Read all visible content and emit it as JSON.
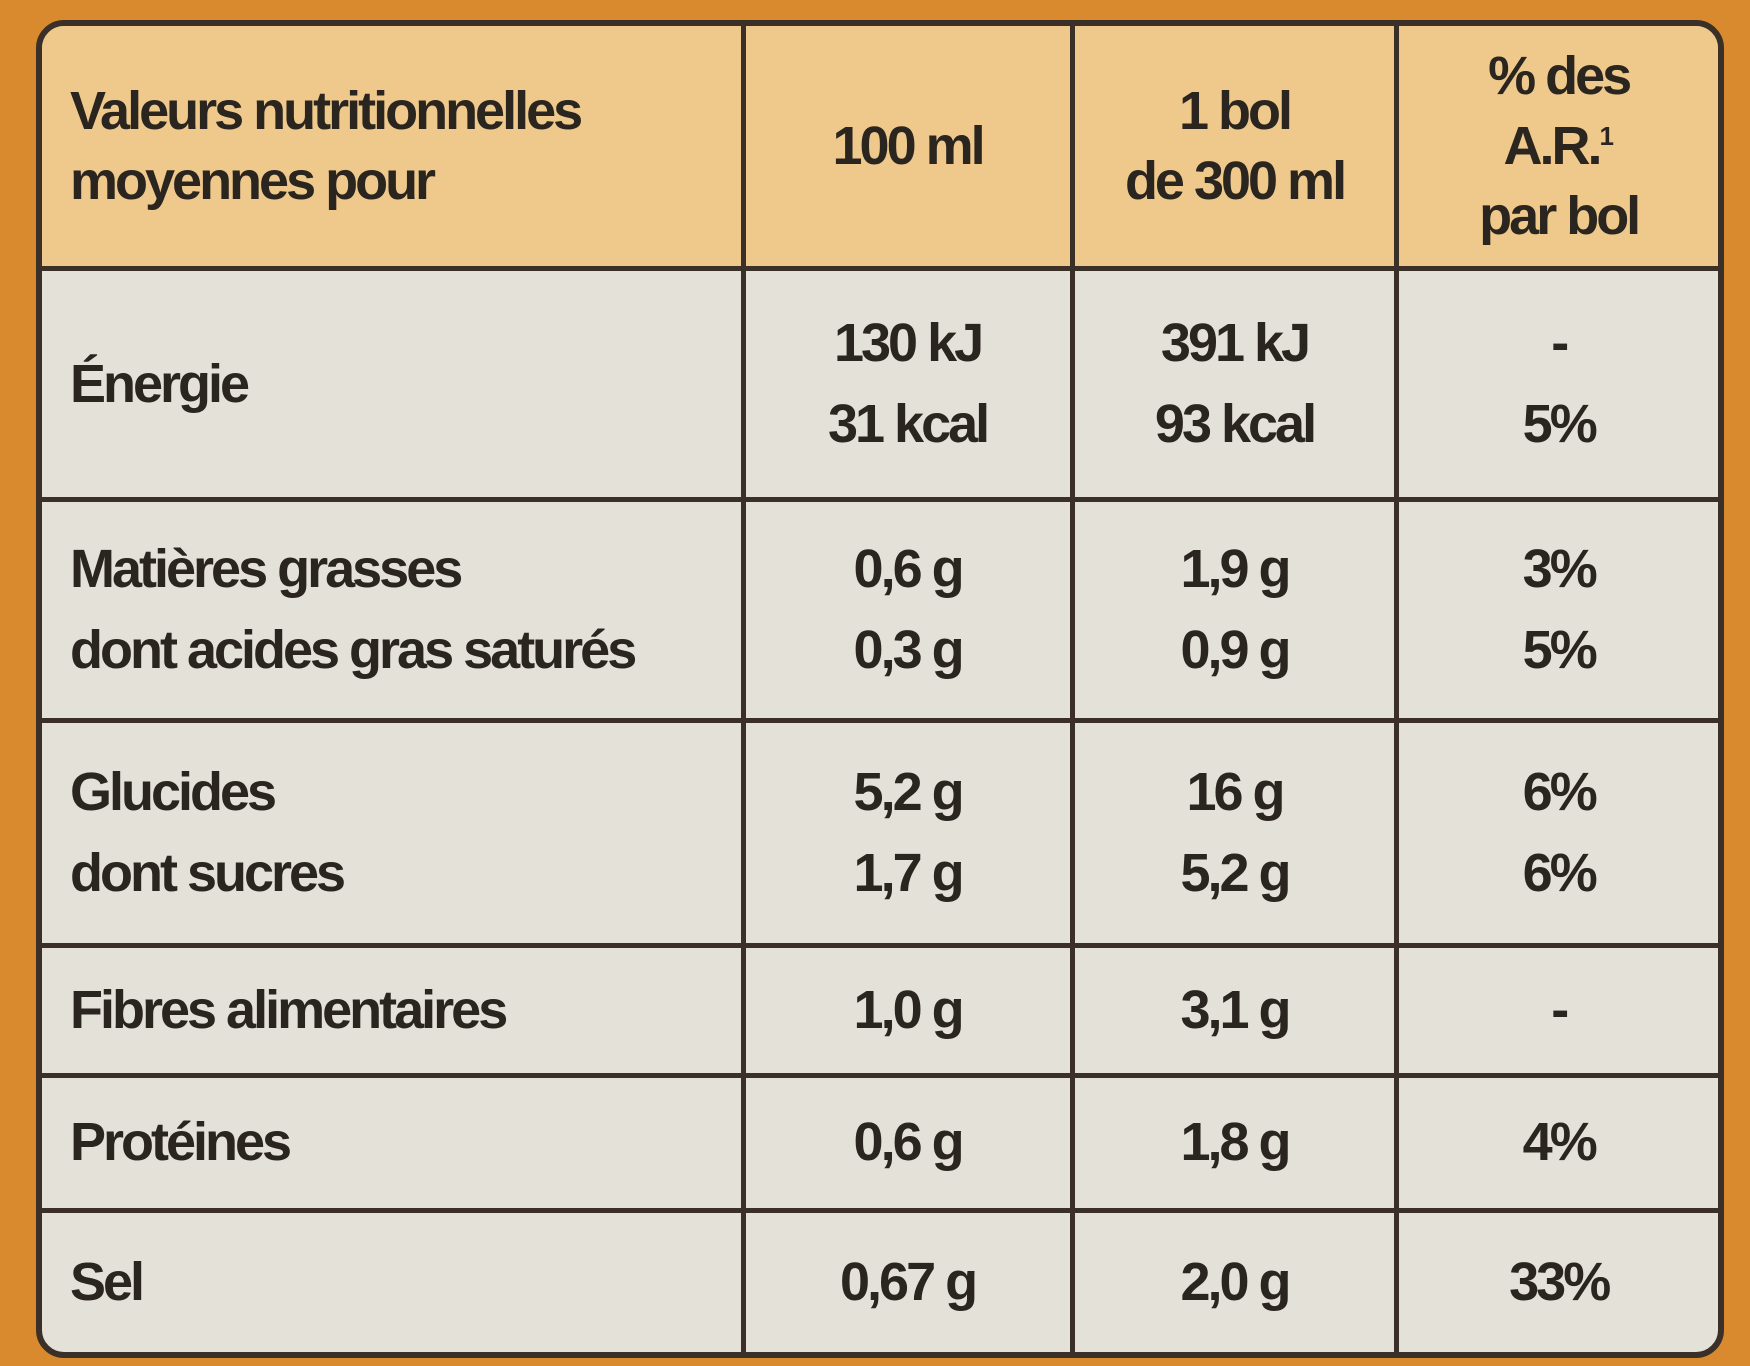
{
  "table": {
    "header": [
      [
        "Valeurs nutritionnelles",
        "moyennes pour"
      ],
      [
        "100 ml"
      ],
      [
        "1 bol",
        "de 300 ml"
      ],
      [
        "% des",
        "A.R.",
        "par bol"
      ]
    ],
    "footnote_mark": "1",
    "rows": [
      [
        [
          "Énergie"
        ],
        [
          "130 kJ",
          "31 kcal"
        ],
        [
          "391 kJ",
          "93 kcal"
        ],
        [
          "-",
          "5%"
        ]
      ],
      [
        [
          "Matières grasses",
          "dont acides gras saturés"
        ],
        [
          "0,6 g",
          "0,3 g"
        ],
        [
          "1,9 g",
          "0,9 g"
        ],
        [
          "3%",
          "5%"
        ]
      ],
      [
        [
          "Glucides",
          "dont sucres"
        ],
        [
          "5,2 g",
          "1,7 g"
        ],
        [
          "16 g",
          "5,2 g"
        ],
        [
          "6%",
          "6%"
        ]
      ],
      [
        [
          "Fibres alimentaires"
        ],
        [
          "1,0 g"
        ],
        [
          "3,1 g"
        ],
        [
          "-"
        ]
      ],
      [
        [
          "Protéines"
        ],
        [
          "0,6 g"
        ],
        [
          "1,8 g"
        ],
        [
          "4%"
        ]
      ],
      [
        [
          "Sel"
        ],
        [
          "0,67 g"
        ],
        [
          "2,0 g"
        ],
        [
          "33%"
        ]
      ]
    ]
  }
}
